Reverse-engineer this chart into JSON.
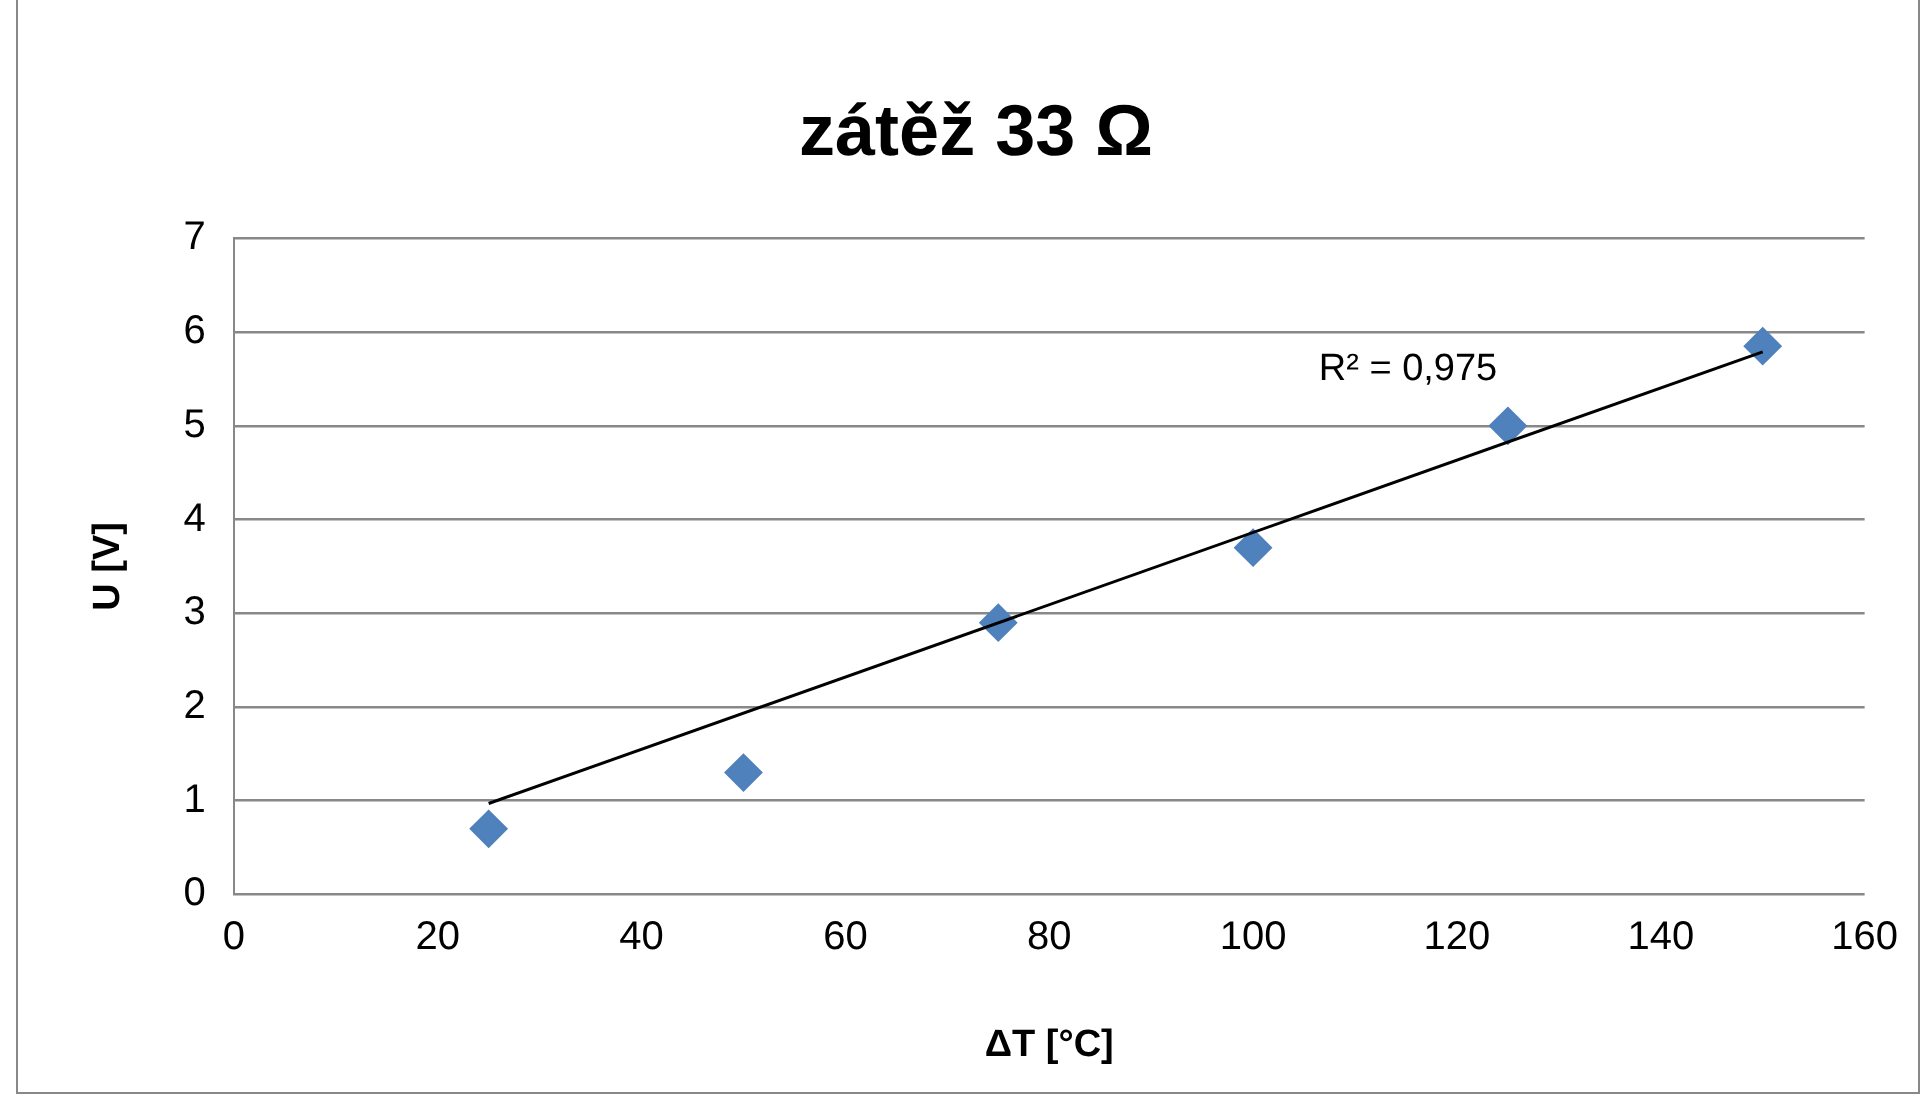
{
  "chart_data": {
    "type": "scatter",
    "title": "zátěž 33 Ω",
    "xlabel": "ΔT [°C]",
    "ylabel": "U [V]",
    "xlim": [
      0,
      160
    ],
    "xticks": [
      0,
      20,
      40,
      60,
      80,
      100,
      120,
      140,
      160
    ],
    "ylim": [
      0,
      7
    ],
    "yticks": [
      0,
      1,
      2,
      3,
      4,
      5,
      6,
      7
    ],
    "grid": "y",
    "legend": false,
    "series": [
      {
        "marker": "diamond",
        "color": "#4f81bd",
        "x": [
          25,
          50,
          75,
          100,
          125,
          150
        ],
        "values": [
          0.7,
          1.3,
          2.9,
          3.7,
          5.0,
          5.85
        ]
      },
      {
        "type": "line",
        "marker": "none",
        "color": "#000000",
        "x": [
          25,
          150
        ],
        "values": [
          0.97,
          5.79
        ]
      }
    ],
    "annotations": [
      "R² = 0,975"
    ]
  }
}
